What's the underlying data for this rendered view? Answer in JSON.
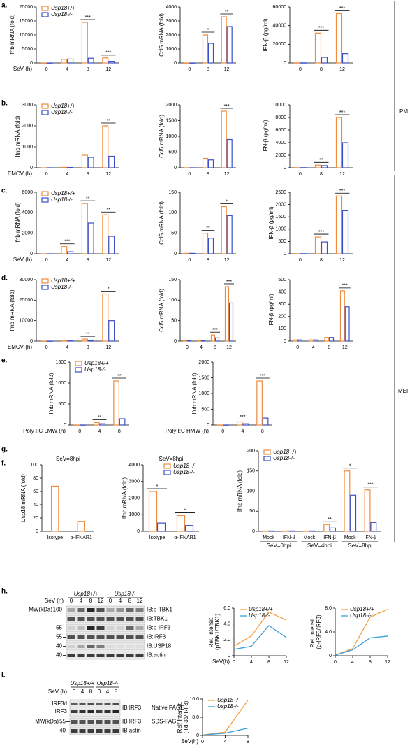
{
  "side_labels": [
    "PM",
    "MEF"
  ],
  "chart_data": [
    {
      "type": "bar",
      "panel": "a.",
      "legend": "upper left",
      "ylabel": "Ifnb mRNA (fold)",
      "xlabel": "SeV (h)",
      "categories": [
        "0",
        "4",
        "8",
        "12"
      ],
      "ylim": [
        0,
        20000
      ],
      "yticks": [
        0,
        5000,
        10000,
        15000,
        20000
      ],
      "series": [
        {
          "name": "Usp18+/+",
          "color": "#f08a3c",
          "values": [
            1,
            1300,
            14500,
            1800
          ]
        },
        {
          "name": "Usp18-/-",
          "color": "#3a4fc8",
          "values": [
            1,
            1400,
            1700,
            600
          ]
        }
      ],
      "significance": [
        null,
        null,
        "***",
        "***"
      ]
    },
    {
      "type": "bar",
      "ylabel": "Ccl5 mRNA (fold)",
      "categories": [
        "0",
        "8",
        "12"
      ],
      "ylim": [
        0,
        4000
      ],
      "yticks": [
        0,
        1000,
        2000,
        3000,
        4000
      ],
      "series": [
        {
          "name": "Usp18+/+",
          "color": "#f08a3c",
          "values": [
            1,
            2000,
            3300
          ]
        },
        {
          "name": "Usp18-/-",
          "color": "#3a4fc8",
          "values": [
            1,
            1400,
            2600
          ]
        }
      ],
      "significance": [
        null,
        "*",
        "**"
      ]
    },
    {
      "type": "bar",
      "ylabel": "IFN-β (pg/ml)",
      "categories": [
        "0",
        "8",
        "12"
      ],
      "ylim": [
        0,
        60000
      ],
      "yticks": [
        0,
        20000,
        40000,
        60000
      ],
      "series": [
        {
          "name": "Usp18+/+",
          "color": "#f08a3c",
          "values": [
            100,
            32000,
            53000
          ]
        },
        {
          "name": "Usp18-/-",
          "color": "#3a4fc8",
          "values": [
            100,
            6000,
            10000
          ]
        }
      ],
      "significance": [
        null,
        "***",
        "***"
      ]
    },
    {
      "type": "bar",
      "panel": "b.",
      "legend": "upper left",
      "ylabel": "Ifnb mRNA (fold)",
      "xlabel": "EMCV (h)",
      "categories": [
        "0",
        "4",
        "8",
        "12"
      ],
      "ylim": [
        0,
        3000
      ],
      "yticks": [
        0,
        1000,
        2000,
        3000
      ],
      "series": [
        {
          "name": "Usp18+/+",
          "color": "#f08a3c",
          "values": [
            1,
            20,
            600,
            2000
          ]
        },
        {
          "name": "Usp18-/-",
          "color": "#3a4fc8",
          "values": [
            1,
            15,
            500,
            550
          ]
        }
      ],
      "significance": [
        null,
        null,
        null,
        "**"
      ]
    },
    {
      "type": "bar",
      "ylabel": "Ccl5 mRNA (fold)",
      "categories": [
        "0",
        "8",
        "12"
      ],
      "ylim": [
        0,
        2000
      ],
      "yticks": [
        0,
        500,
        1000,
        1500,
        2000
      ],
      "series": [
        {
          "name": "Usp18+/+",
          "color": "#f08a3c",
          "values": [
            1,
            300,
            1800
          ]
        },
        {
          "name": "Usp18-/-",
          "color": "#3a4fc8",
          "values": [
            1,
            250,
            900
          ]
        }
      ],
      "significance": [
        null,
        null,
        "***"
      ]
    },
    {
      "type": "bar",
      "ylabel": "IFN-β (pg/ml)",
      "categories": [
        "0",
        "8",
        "12"
      ],
      "ylim": [
        0,
        10000
      ],
      "yticks": [
        0,
        2000,
        4000,
        6000,
        8000,
        10000
      ],
      "series": [
        {
          "name": "Usp18+/+",
          "color": "#f08a3c",
          "values": [
            20,
            410,
            8000
          ]
        },
        {
          "name": "Usp18-/-",
          "color": "#3a4fc8",
          "values": [
            20,
            340,
            4000
          ]
        }
      ],
      "significance": [
        null,
        "**",
        "***"
      ]
    },
    {
      "type": "bar",
      "panel": "c.",
      "legend": "upper left",
      "ylabel": "Ifnb mRNA (fold)",
      "xlabel": "SeV (h)",
      "categories": [
        "0",
        "4",
        "8",
        "12"
      ],
      "ylim": [
        0,
        6000
      ],
      "yticks": [
        0,
        2000,
        4000,
        6000
      ],
      "series": [
        {
          "name": "Usp18+/+",
          "color": "#f08a3c",
          "values": [
            1,
            700,
            4900,
            3800
          ]
        },
        {
          "name": "Usp18-/-",
          "color": "#3a4fc8",
          "values": [
            1,
            200,
            3000,
            1700
          ]
        }
      ],
      "significance": [
        null,
        "***",
        "**",
        "**"
      ]
    },
    {
      "type": "bar",
      "ylabel": "Ccl5 mRNA (fold)",
      "categories": [
        "0",
        "8",
        "12"
      ],
      "ylim": [
        0,
        150
      ],
      "yticks": [
        0,
        50,
        100,
        150
      ],
      "series": [
        {
          "name": "Usp18+/+",
          "color": "#f08a3c",
          "values": [
            1,
            50,
            115
          ]
        },
        {
          "name": "Usp18-/-",
          "color": "#3a4fc8",
          "values": [
            1,
            38,
            93
          ]
        }
      ],
      "significance": [
        null,
        "**",
        "*"
      ]
    },
    {
      "type": "bar",
      "ylabel": "IFN-β (pg/ml)",
      "categories": [
        "0",
        "8",
        "12"
      ],
      "ylim": [
        0,
        2500
      ],
      "yticks": [
        0,
        500,
        1000,
        1500,
        2000,
        2500
      ],
      "series": [
        {
          "name": "Usp18+/+",
          "color": "#f08a3c",
          "values": [
            5,
            680,
            2350
          ]
        },
        {
          "name": "Usp18-/-",
          "color": "#3a4fc8",
          "values": [
            5,
            480,
            1750
          ]
        }
      ],
      "significance": [
        null,
        "***",
        "***"
      ]
    },
    {
      "type": "bar",
      "panel": "d.",
      "legend": "upper left",
      "ylabel": "Ifnb mRNA (fold)",
      "xlabel": "EMCV (h)",
      "categories": [
        "0",
        "4",
        "8",
        "12"
      ],
      "ylim": [
        0,
        30000
      ],
      "yticks": [
        0,
        10000,
        20000,
        30000
      ],
      "series": [
        {
          "name": "Usp18+/+",
          "color": "#f08a3c",
          "values": [
            1,
            100,
            1000,
            23000
          ]
        },
        {
          "name": "Usp18-/-",
          "color": "#3a4fc8",
          "values": [
            1,
            100,
            300,
            10000
          ]
        }
      ],
      "significance": [
        null,
        null,
        "**",
        "*"
      ]
    },
    {
      "type": "bar",
      "ylabel": "Ccl5 mRNA (fold)",
      "categories": [
        "0",
        "4",
        "8",
        "12"
      ],
      "ylim": [
        0,
        150
      ],
      "yticks": [
        0,
        50,
        100,
        150
      ],
      "series": [
        {
          "name": "Usp18+/+",
          "color": "#f08a3c",
          "values": [
            1,
            2,
            15,
            133
          ]
        },
        {
          "name": "Usp18-/-",
          "color": "#3a4fc8",
          "values": [
            1,
            1,
            8,
            93
          ]
        }
      ],
      "significance": [
        null,
        null,
        "***",
        "***"
      ]
    },
    {
      "type": "bar",
      "ylabel": "IFN-β (pg/ml)",
      "categories": [
        "0",
        "4",
        "8",
        "12"
      ],
      "ylim": [
        0,
        500
      ],
      "yticks": [
        0,
        100,
        200,
        300,
        400,
        500
      ],
      "series": [
        {
          "name": "Usp18+/+",
          "color": "#f08a3c",
          "values": [
            10,
            10,
            30,
            410
          ]
        },
        {
          "name": "Usp18-/-",
          "color": "#3a4fc8",
          "values": [
            10,
            10,
            30,
            280
          ]
        }
      ],
      "significance": [
        null,
        null,
        null,
        "***"
      ]
    },
    {
      "type": "bar",
      "panel": "e.",
      "legend": "upper left",
      "ylabel": "Ifnb mRNA (fold)",
      "xlabel": "Poly I:C LMW (h)",
      "categories": [
        "0",
        "4",
        "8"
      ],
      "ylim": [
        0,
        1500
      ],
      "yticks": [
        0,
        500,
        1000,
        1500
      ],
      "series": [
        {
          "name": "Usp18+/+",
          "color": "#f08a3c",
          "values": [
            1,
            60,
            1050
          ]
        },
        {
          "name": "Usp18-/-",
          "color": "#3a4fc8",
          "values": [
            1,
            30,
            150
          ]
        }
      ],
      "significance": [
        null,
        "**",
        "**"
      ]
    },
    {
      "type": "bar",
      "ylabel": "Ifnb mRNA (fold)",
      "xlabel": "Poly I:C HMW (h)",
      "categories": [
        "0",
        "4",
        "8"
      ],
      "ylim": [
        0,
        2000
      ],
      "yticks": [
        0,
        500,
        1000,
        1500,
        2000
      ],
      "series": [
        {
          "name": "Usp18+/+",
          "color": "#f08a3c",
          "values": [
            1,
            100,
            1400
          ]
        },
        {
          "name": "Usp18-/-",
          "color": "#3a4fc8",
          "values": [
            1,
            40,
            220
          ]
        }
      ],
      "significance": [
        null,
        "***",
        "***"
      ]
    },
    {
      "type": "bar",
      "panel": "f.",
      "title": "SeV=8hpi",
      "ylabel": "Usp18 mRNA (fold)",
      "categories": [
        "Isotype",
        "α-IFNAR1"
      ],
      "ylim": [
        0,
        100
      ],
      "yticks": [
        0,
        20,
        40,
        60,
        80,
        100
      ],
      "series": [
        {
          "name": "Usp18+/+",
          "color": "#f08a3c",
          "values": [
            68,
            15
          ]
        }
      ],
      "significance": [
        null,
        null
      ]
    },
    {
      "type": "bar",
      "title": "SeV=8hpi",
      "legend": "upper right",
      "ylabel": "Ifnb mRNA (fold)",
      "categories": [
        "Isotype",
        "α-IFNAR1"
      ],
      "ylim": [
        0,
        4000
      ],
      "yticks": [
        0,
        1000,
        2000,
        3000,
        4000
      ],
      "series": [
        {
          "name": "Usp18+/+",
          "color": "#f08a3c",
          "values": [
            2400,
            950
          ]
        },
        {
          "name": "Usp18-/-",
          "color": "#3a4fc8",
          "values": [
            500,
            350
          ]
        }
      ],
      "significance": [
        "*",
        "*"
      ]
    },
    {
      "type": "bar",
      "panel": "g.",
      "legend": "upper left",
      "ylabel": "Ifnb mRNA (fold)",
      "categories": [
        "Mock",
        "IFN-β",
        "Mock",
        "IFN-β",
        "Mock",
        "IFN-β"
      ],
      "group_labels": [
        "SeV=0hpi",
        "SeV=4hpi",
        "SeV=8hpi"
      ],
      "ylim": [
        0,
        200
      ],
      "yticks": [
        0,
        50,
        100,
        150,
        200
      ],
      "series": [
        {
          "name": "Usp18+/+",
          "color": "#f08a3c",
          "values": [
            1,
            1,
            1,
            17,
            150,
            103
          ]
        },
        {
          "name": "Usp18-/-",
          "color": "#3a4fc8",
          "values": [
            1,
            1,
            1,
            8,
            90,
            22
          ]
        }
      ],
      "significance": [
        null,
        null,
        null,
        "**",
        "*",
        "***"
      ]
    },
    {
      "type": "line",
      "legend": "upper left",
      "ylabel": [
        "Rel. Intensit.",
        "(pTBK1/TBK1)"
      ],
      "xlabel": "SeV(h)",
      "x": [
        0,
        4,
        8,
        12
      ],
      "xlim": [
        0,
        12
      ],
      "xticks": [
        0,
        4,
        8,
        12
      ],
      "ylim": [
        0,
        6
      ],
      "yticks": [
        0,
        {
          "value": 2,
          "label": "2.0"
        },
        {
          "value": 4,
          "label": "4.0"
        },
        {
          "value": 6,
          "label": "6.0"
        }
      ],
      "series": [
        {
          "name": "Usp18+/+",
          "color": "#f5a040",
          "values": [
            1.2,
            2.5,
            5.5,
            4.5
          ]
        },
        {
          "name": "Usp18-/-",
          "color": "#38a0d8",
          "values": [
            0.8,
            1.2,
            3.8,
            2.3
          ]
        }
      ]
    },
    {
      "type": "line",
      "legend": "upper left",
      "ylabel": [
        "Rel. Intensit.",
        "(p-IRF3/IRF3)"
      ],
      "x": [
        0,
        4,
        8,
        12
      ],
      "xlim": [
        0,
        12
      ],
      "xticks": [
        0,
        4,
        8,
        12
      ],
      "ylim": [
        0,
        8
      ],
      "yticks": [
        0,
        {
          "value": 4,
          "label": "4.0"
        },
        {
          "value": 8,
          "label": "8.0"
        }
      ],
      "series": [
        {
          "name": "Usp18+/+",
          "color": "#f5a040",
          "values": [
            0.1,
            1.2,
            6.5,
            7.8
          ]
        },
        {
          "name": "Usp18-/-",
          "color": "#38a0d8",
          "values": [
            0.1,
            1,
            3,
            3.3
          ]
        }
      ]
    },
    {
      "type": "line",
      "legend": "upper left",
      "ylabel": [
        "Rel. Intensit.",
        "(IRF3d/IRF3)"
      ],
      "xlabel": "SeV(h)",
      "x": [
        0,
        4,
        8
      ],
      "xlim": [
        0,
        8
      ],
      "xticks": [
        0,
        4,
        8
      ],
      "ylim": [
        0,
        16
      ],
      "yticks": [
        0,
        {
          "value": 8,
          "label": "8.0"
        },
        {
          "value": 16,
          "label": "16.0"
        }
      ],
      "series": [
        {
          "name": "Usp18+/+",
          "color": "#f5a040",
          "values": [
            0.2,
            1.5,
            15.5
          ]
        },
        {
          "name": "Usp18-/-",
          "color": "#38a0d8",
          "values": [
            0.2,
            1,
            3.2
          ]
        }
      ]
    }
  ],
  "blots": [
    {
      "panel": "h.",
      "time_label": "SeV (h)",
      "genotypes": [
        "Usp18+/+",
        "Usp18-/-"
      ],
      "lanes": [
        "0",
        "4",
        "8",
        "12",
        "0",
        "4",
        "8",
        "12"
      ],
      "mw_label": "MW(kDa)",
      "rows": [
        {
          "marker": "100",
          "label": "IB:p-TBK1"
        },
        {
          "label": "IB:TBK1"
        },
        {
          "marker": "55",
          "label": "IB:p-IRF3"
        },
        {
          "marker": "55",
          "label": "IB:IRF3"
        },
        {
          "marker": "40",
          "label": "IB:USP18"
        },
        {
          "marker": "40",
          "label": "IB:actin"
        }
      ]
    },
    {
      "panel": "i.",
      "time_label": "SeV (h)",
      "genotypes": [
        "Usp18+/+",
        "Usp18-/-"
      ],
      "lanes": [
        "0",
        "4",
        "8",
        "0",
        "4",
        "8"
      ],
      "mw_label": "MW(kDa)",
      "band_labels": [
        "IRF3d",
        "IRF3"
      ],
      "rows": [
        {
          "label": "IB:IRF3",
          "note": "Native PAGE"
        },
        {
          "marker": "55",
          "label": "IB:IRF3",
          "note": "SDS-PAGE"
        },
        {
          "marker": "40",
          "label": "IB:actin"
        }
      ]
    }
  ]
}
